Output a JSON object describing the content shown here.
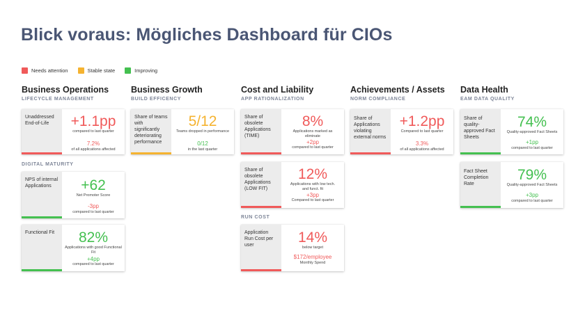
{
  "title": "Blick voraus: Mögliches Dashboard für CIOs",
  "colors": {
    "red": "#f05a5a",
    "yellow": "#f5b330",
    "green": "#44c050"
  },
  "legend": [
    {
      "label": "Needs attention",
      "color": "#f05a5a"
    },
    {
      "label": "Stable state",
      "color": "#f5b330"
    },
    {
      "label": "Improving",
      "color": "#44c050"
    }
  ],
  "columns": {
    "business_operations": {
      "title": "Business Operations",
      "section1": "LIFECYCLE MANAGEMENT",
      "card1": {
        "label": "Unaddressed End-of-Life",
        "value": "+1.1pp",
        "caption": "compared to last quarter",
        "delta": "7.2%",
        "delta_caption": "of all applications affected",
        "status": "red"
      },
      "section2": "DIGITAL MATURITY",
      "card2": {
        "label": "NPS of internal Applications",
        "value": "+62",
        "caption": "Net Promoter Score",
        "delta": "-3pp",
        "delta_caption": "compared to last quarter",
        "status": "green"
      },
      "card3": {
        "label": "Functional Fit",
        "value": "82%",
        "caption": "Applications with good Functional Fit",
        "delta": "+4pp",
        "delta_caption": "compared to last quarter",
        "status": "green"
      }
    },
    "business_growth": {
      "title": "Business Growth",
      "section1": "BUILD EFFICENCY",
      "card1": {
        "label": "Share of teams with significantly deteriorating performance",
        "value": "5/12",
        "caption": "Teams dropped in performance",
        "delta": "0/12",
        "delta_caption": "in the last quarter",
        "status": "yellow"
      }
    },
    "cost_liability": {
      "title": "Cost and Liability",
      "section1": "APP RATIONALIZATION",
      "card1": {
        "label": "Share of obsolete Applications (TIME)",
        "value": "8%",
        "caption": "Applications marked as eliminate",
        "delta": "+2pp",
        "delta_caption": "compared to last quarter",
        "status": "red"
      },
      "card2": {
        "label": "Share of obsolete Applications (LOW FIT)",
        "value": "12%",
        "caption": "Applications with low tech. and funct. fit",
        "delta": "+3pp",
        "delta_caption": "Compared to last quarter",
        "status": "red"
      },
      "section2": "RUN COST",
      "card3": {
        "label": "Application Run Cost per user",
        "value": "14%",
        "caption": "below target",
        "delta": "$172/employee",
        "delta_caption": "Monthly Spend",
        "status": "red"
      }
    },
    "achievements": {
      "title": "Achievements / Assets",
      "section1": "NORM COMPLIANCE",
      "card1": {
        "label": "Share of Applications violating external norms",
        "value": "+1.2pp",
        "caption": "Compared to last quarter",
        "delta": "3.3%",
        "delta_caption": "of all applications affected",
        "status": "red"
      }
    },
    "data_health": {
      "title": "Data Health",
      "section1": "EAM DATA QUALITY",
      "card1": {
        "label": "Share of quality-approved Fact Sheets",
        "value": "74%",
        "caption": "Quality-approved Fact Sheets",
        "delta": "+1pp",
        "delta_caption": "compared to last quarter",
        "status": "green"
      },
      "card2": {
        "label": "Fact Sheet Completion Rate",
        "value": "79%",
        "caption": "Quality-approved Fact Sheets",
        "delta": "+3pp",
        "delta_caption": "compared to last quarter",
        "status": "green"
      }
    }
  }
}
